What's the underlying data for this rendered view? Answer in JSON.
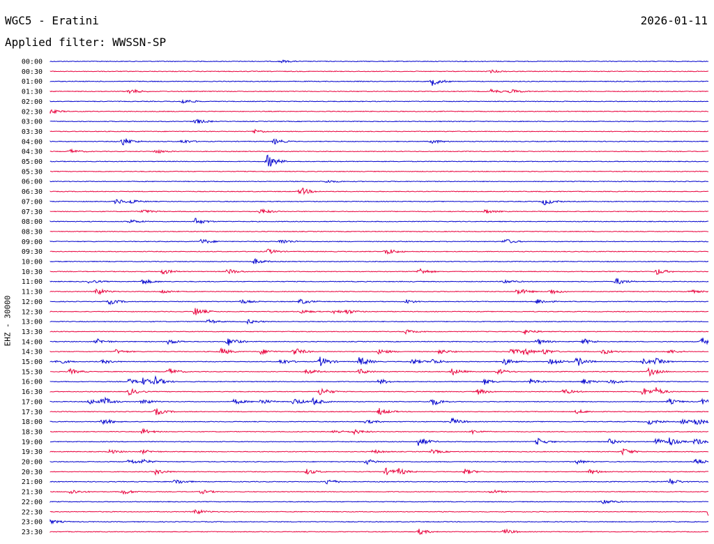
{
  "header": {
    "station": "WGC5 - Eratini",
    "date": "2026-01-11",
    "filter_text": "Applied filter: WWSSN-SP",
    "channel_label": "EHZ - 30000"
  },
  "chart_data": {
    "type": "line",
    "title": "WGC5 - Eratini",
    "grid": false,
    "colors": {
      "even": "#0000cc",
      "odd": "#e8003c"
    },
    "rows": [
      {
        "label": "00:00",
        "events": [
          {
            "x": 0.35,
            "a": 2
          }
        ]
      },
      {
        "label": "00:30",
        "events": [
          {
            "x": 0.67,
            "a": 2
          }
        ]
      },
      {
        "label": "01:00",
        "events": [
          {
            "x": 0.58,
            "a": 6
          }
        ]
      },
      {
        "label": "01:30",
        "events": [
          {
            "x": 0.12,
            "a": 4
          },
          {
            "x": 0.67,
            "a": 3
          },
          {
            "x": 0.7,
            "a": 3
          }
        ]
      },
      {
        "label": "02:00",
        "events": [
          {
            "x": 0.2,
            "a": 4
          }
        ]
      },
      {
        "label": "02:30",
        "events": [
          {
            "x": 0.0,
            "a": 3
          }
        ]
      },
      {
        "label": "03:00",
        "events": [
          {
            "x": 0.22,
            "a": 4
          }
        ]
      },
      {
        "label": "03:30",
        "events": [
          {
            "x": 0.31,
            "a": 3
          }
        ]
      },
      {
        "label": "04:00",
        "events": [
          {
            "x": 0.11,
            "a": 6
          },
          {
            "x": 0.2,
            "a": 3
          },
          {
            "x": 0.34,
            "a": 4
          },
          {
            "x": 0.58,
            "a": 3
          }
        ]
      },
      {
        "label": "04:30",
        "events": [
          {
            "x": 0.03,
            "a": 3
          },
          {
            "x": 0.16,
            "a": 3
          }
        ]
      },
      {
        "label": "05:00",
        "events": [
          {
            "x": 0.33,
            "a": 10
          }
        ]
      },
      {
        "label": "05:30",
        "events": []
      },
      {
        "label": "06:00",
        "events": [
          {
            "x": 0.42,
            "a": 2
          }
        ]
      },
      {
        "label": "06:30",
        "events": [
          {
            "x": 0.38,
            "a": 6
          }
        ]
      },
      {
        "label": "07:00",
        "events": [
          {
            "x": 0.1,
            "a": 4
          },
          {
            "x": 0.12,
            "a": 3
          },
          {
            "x": 0.75,
            "a": 5
          }
        ]
      },
      {
        "label": "07:30",
        "events": [
          {
            "x": 0.14,
            "a": 3
          },
          {
            "x": 0.32,
            "a": 4
          },
          {
            "x": 0.66,
            "a": 3
          }
        ]
      },
      {
        "label": "08:00",
        "events": [
          {
            "x": 0.12,
            "a": 3
          },
          {
            "x": 0.22,
            "a": 5
          }
        ]
      },
      {
        "label": "08:30",
        "events": []
      },
      {
        "label": "09:00",
        "events": [
          {
            "x": 0.23,
            "a": 4
          },
          {
            "x": 0.35,
            "a": 4
          },
          {
            "x": 0.69,
            "a": 4
          }
        ]
      },
      {
        "label": "09:30",
        "events": [
          {
            "x": 0.33,
            "a": 4
          },
          {
            "x": 0.51,
            "a": 5
          }
        ]
      },
      {
        "label": "10:00",
        "events": [
          {
            "x": 0.31,
            "a": 4
          }
        ]
      },
      {
        "label": "10:30",
        "events": [
          {
            "x": 0.17,
            "a": 4
          },
          {
            "x": 0.27,
            "a": 4
          },
          {
            "x": 0.56,
            "a": 5
          },
          {
            "x": 0.92,
            "a": 5
          }
        ]
      },
      {
        "label": "11:00",
        "events": [
          {
            "x": 0.06,
            "a": 3
          },
          {
            "x": 0.14,
            "a": 4
          },
          {
            "x": 0.69,
            "a": 3
          },
          {
            "x": 0.86,
            "a": 5
          }
        ]
      },
      {
        "label": "11:30",
        "events": [
          {
            "x": 0.07,
            "a": 5
          },
          {
            "x": 0.17,
            "a": 3
          },
          {
            "x": 0.71,
            "a": 5
          },
          {
            "x": 0.76,
            "a": 4
          },
          {
            "x": 0.97,
            "a": 3
          }
        ]
      },
      {
        "label": "12:00",
        "events": [
          {
            "x": 0.09,
            "a": 4
          },
          {
            "x": 0.29,
            "a": 3
          },
          {
            "x": 0.38,
            "a": 4
          },
          {
            "x": 0.54,
            "a": 3
          },
          {
            "x": 0.74,
            "a": 4
          }
        ]
      },
      {
        "label": "12:30",
        "events": [
          {
            "x": 0.22,
            "a": 6
          },
          {
            "x": 0.38,
            "a": 3
          },
          {
            "x": 0.43,
            "a": 3
          },
          {
            "x": 0.45,
            "a": 3
          }
        ]
      },
      {
        "label": "13:00",
        "events": [
          {
            "x": 0.24,
            "a": 3
          },
          {
            "x": 0.3,
            "a": 3
          }
        ]
      },
      {
        "label": "13:30",
        "events": [
          {
            "x": 0.54,
            "a": 3
          },
          {
            "x": 0.72,
            "a": 4
          }
        ]
      },
      {
        "label": "14:00",
        "events": [
          {
            "x": 0.07,
            "a": 4
          },
          {
            "x": 0.18,
            "a": 4
          },
          {
            "x": 0.27,
            "a": 6
          },
          {
            "x": 0.74,
            "a": 4
          },
          {
            "x": 0.81,
            "a": 4
          },
          {
            "x": 0.99,
            "a": 6
          }
        ]
      },
      {
        "label": "14:30",
        "events": [
          {
            "x": 0.1,
            "a": 3
          },
          {
            "x": 0.26,
            "a": 5
          },
          {
            "x": 0.32,
            "a": 4
          },
          {
            "x": 0.37,
            "a": 6
          },
          {
            "x": 0.5,
            "a": 4
          },
          {
            "x": 0.59,
            "a": 4
          },
          {
            "x": 0.7,
            "a": 5
          },
          {
            "x": 0.72,
            "a": 5
          },
          {
            "x": 0.75,
            "a": 4
          },
          {
            "x": 0.84,
            "a": 4
          },
          {
            "x": 0.94,
            "a": 3
          }
        ]
      },
      {
        "label": "15:00",
        "events": [
          {
            "x": 0.01,
            "a": 4
          },
          {
            "x": 0.08,
            "a": 3
          },
          {
            "x": 0.35,
            "a": 4
          },
          {
            "x": 0.41,
            "a": 7
          },
          {
            "x": 0.47,
            "a": 7
          },
          {
            "x": 0.55,
            "a": 4
          },
          {
            "x": 0.58,
            "a": 4
          },
          {
            "x": 0.69,
            "a": 5
          },
          {
            "x": 0.76,
            "a": 6
          },
          {
            "x": 0.8,
            "a": 7
          },
          {
            "x": 0.9,
            "a": 4
          },
          {
            "x": 0.92,
            "a": 4
          }
        ]
      },
      {
        "label": "15:30",
        "events": [
          {
            "x": 0.03,
            "a": 4
          },
          {
            "x": 0.18,
            "a": 5
          },
          {
            "x": 0.39,
            "a": 4
          },
          {
            "x": 0.47,
            "a": 4
          },
          {
            "x": 0.61,
            "a": 5
          },
          {
            "x": 0.68,
            "a": 4
          },
          {
            "x": 0.91,
            "a": 6
          }
        ]
      },
      {
        "label": "16:00",
        "events": [
          {
            "x": 0.12,
            "a": 4
          },
          {
            "x": 0.14,
            "a": 5
          },
          {
            "x": 0.16,
            "a": 6
          },
          {
            "x": 0.5,
            "a": 4
          },
          {
            "x": 0.66,
            "a": 4
          },
          {
            "x": 0.73,
            "a": 4
          },
          {
            "x": 0.81,
            "a": 4
          },
          {
            "x": 0.85,
            "a": 4
          }
        ]
      },
      {
        "label": "16:30",
        "events": [
          {
            "x": 0.12,
            "a": 5
          },
          {
            "x": 0.41,
            "a": 6
          },
          {
            "x": 0.65,
            "a": 4
          },
          {
            "x": 0.78,
            "a": 4
          },
          {
            "x": 0.9,
            "a": 6
          },
          {
            "x": 0.92,
            "a": 5
          }
        ]
      },
      {
        "label": "17:00",
        "events": [
          {
            "x": 0.06,
            "a": 4
          },
          {
            "x": 0.08,
            "a": 6
          },
          {
            "x": 0.14,
            "a": 4
          },
          {
            "x": 0.28,
            "a": 4
          },
          {
            "x": 0.32,
            "a": 4
          },
          {
            "x": 0.37,
            "a": 5
          },
          {
            "x": 0.4,
            "a": 5
          },
          {
            "x": 0.58,
            "a": 6
          },
          {
            "x": 0.94,
            "a": 4
          },
          {
            "x": 0.99,
            "a": 4
          }
        ]
      },
      {
        "label": "17:30",
        "events": [
          {
            "x": 0.16,
            "a": 5
          },
          {
            "x": 0.5,
            "a": 5
          },
          {
            "x": 0.8,
            "a": 3
          }
        ]
      },
      {
        "label": "18:00",
        "events": [
          {
            "x": 0.08,
            "a": 5
          },
          {
            "x": 0.48,
            "a": 3
          },
          {
            "x": 0.61,
            "a": 5
          },
          {
            "x": 0.91,
            "a": 4
          },
          {
            "x": 0.96,
            "a": 4
          },
          {
            "x": 0.98,
            "a": 5
          }
        ]
      },
      {
        "label": "18:30",
        "events": [
          {
            "x": 0.14,
            "a": 4
          },
          {
            "x": 0.43,
            "a": 3
          },
          {
            "x": 0.46,
            "a": 4
          },
          {
            "x": 0.64,
            "a": 3
          }
        ]
      },
      {
        "label": "19:00",
        "events": [
          {
            "x": 0.56,
            "a": 7
          },
          {
            "x": 0.74,
            "a": 5
          },
          {
            "x": 0.85,
            "a": 4
          },
          {
            "x": 0.92,
            "a": 5
          },
          {
            "x": 0.94,
            "a": 6
          },
          {
            "x": 0.98,
            "a": 5
          }
        ]
      },
      {
        "label": "19:30",
        "events": [
          {
            "x": 0.09,
            "a": 3
          },
          {
            "x": 0.14,
            "a": 3
          },
          {
            "x": 0.49,
            "a": 3
          },
          {
            "x": 0.58,
            "a": 3
          },
          {
            "x": 0.87,
            "a": 5
          }
        ]
      },
      {
        "label": "20:00",
        "events": [
          {
            "x": 0.12,
            "a": 4
          },
          {
            "x": 0.14,
            "a": 3
          },
          {
            "x": 0.48,
            "a": 4
          },
          {
            "x": 0.8,
            "a": 3
          },
          {
            "x": 0.98,
            "a": 5
          }
        ]
      },
      {
        "label": "20:30",
        "events": [
          {
            "x": 0.16,
            "a": 4
          },
          {
            "x": 0.39,
            "a": 4
          },
          {
            "x": 0.51,
            "a": 5
          },
          {
            "x": 0.53,
            "a": 4
          },
          {
            "x": 0.63,
            "a": 4
          },
          {
            "x": 0.82,
            "a": 4
          }
        ]
      },
      {
        "label": "21:00",
        "events": [
          {
            "x": 0.19,
            "a": 4
          },
          {
            "x": 0.42,
            "a": 4
          },
          {
            "x": 0.94,
            "a": 5
          }
        ]
      },
      {
        "label": "21:30",
        "events": [
          {
            "x": 0.03,
            "a": 4
          },
          {
            "x": 0.11,
            "a": 4
          },
          {
            "x": 0.23,
            "a": 3
          },
          {
            "x": 0.67,
            "a": 3
          }
        ]
      },
      {
        "label": "22:00",
        "events": [
          {
            "x": 0.84,
            "a": 4
          }
        ]
      },
      {
        "label": "22:30",
        "events": [
          {
            "x": 0.22,
            "a": 4
          },
          {
            "x": 1.0,
            "a": 6
          }
        ]
      },
      {
        "label": "23:00",
        "events": [
          {
            "x": 0.0,
            "a": 3
          }
        ]
      },
      {
        "label": "23:30",
        "events": [
          {
            "x": 0.56,
            "a": 4
          },
          {
            "x": 0.69,
            "a": 4
          }
        ]
      }
    ]
  }
}
